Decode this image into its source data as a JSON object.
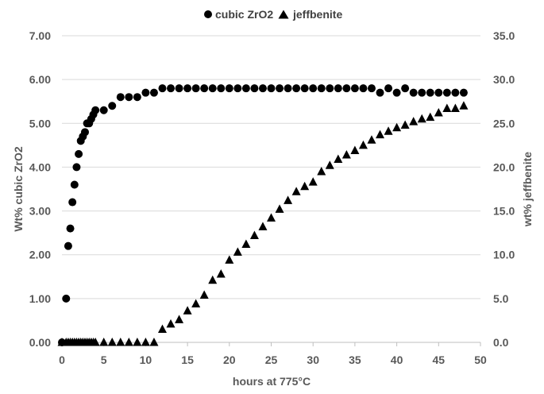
{
  "chart_data": {
    "type": "scatter",
    "xlabel": "hours at 775°C",
    "ylabel_left": "Wt% cubic ZrO2",
    "ylabel_right": "wt% jeffbenite",
    "xlim": [
      0,
      50
    ],
    "ylim_left": [
      0,
      7
    ],
    "ylim_right": [
      0,
      35
    ],
    "x_ticks": [
      "0",
      "5",
      "10",
      "15",
      "20",
      "25",
      "30",
      "35",
      "40",
      "45",
      "50"
    ],
    "y_left_ticks": [
      "0.00",
      "1.00",
      "2.00",
      "3.00",
      "4.00",
      "5.00",
      "6.00",
      "7.00"
    ],
    "y_right_ticks": [
      "0.0",
      "5.0",
      "10.0",
      "15.0",
      "20.0",
      "25.0",
      "30.0",
      "35.0"
    ],
    "grid": "horizontal",
    "legend_position": "top-center",
    "series": [
      {
        "name": "cubic ZrO2",
        "axis": "left",
        "marker": "circle",
        "color": "#000000",
        "x": [
          0,
          0.5,
          0.75,
          1,
          1.25,
          1.5,
          1.75,
          2,
          2.25,
          2.5,
          2.75,
          3,
          3.25,
          3.5,
          3.75,
          4,
          5,
          6,
          7,
          8,
          9,
          10,
          11,
          12,
          13,
          14,
          15,
          16,
          17,
          18,
          19,
          20,
          21,
          22,
          23,
          24,
          25,
          26,
          27,
          28,
          29,
          30,
          31,
          32,
          33,
          34,
          35,
          36,
          37,
          38,
          39,
          40,
          41,
          42,
          43,
          44,
          45,
          46,
          47,
          48
        ],
        "y": [
          0.0,
          1.0,
          2.2,
          2.6,
          3.2,
          3.6,
          4.0,
          4.3,
          4.6,
          4.7,
          4.8,
          5.0,
          5.0,
          5.1,
          5.2,
          5.3,
          5.3,
          5.4,
          5.6,
          5.6,
          5.6,
          5.7,
          5.7,
          5.8,
          5.8,
          5.8,
          5.8,
          5.8,
          5.8,
          5.8,
          5.8,
          5.8,
          5.8,
          5.8,
          5.8,
          5.8,
          5.8,
          5.8,
          5.8,
          5.8,
          5.8,
          5.8,
          5.8,
          5.8,
          5.8,
          5.8,
          5.8,
          5.8,
          5.8,
          5.7,
          5.8,
          5.7,
          5.8,
          5.7,
          5.7,
          5.7,
          5.7,
          5.7,
          5.7,
          5.7
        ]
      },
      {
        "name": "jeffbenite",
        "axis": "right",
        "marker": "triangle",
        "color": "#000000",
        "x": [
          0,
          0.5,
          0.75,
          1,
          1.25,
          1.5,
          1.75,
          2,
          2.25,
          2.5,
          2.75,
          3,
          3.25,
          3.5,
          3.75,
          4,
          5,
          6,
          7,
          8,
          9,
          10,
          11,
          12,
          13,
          14,
          15,
          16,
          17,
          18,
          19,
          20,
          21,
          22,
          23,
          24,
          25,
          26,
          27,
          28,
          29,
          30,
          31,
          32,
          33,
          34,
          35,
          36,
          37,
          38,
          39,
          40,
          41,
          42,
          43,
          44,
          45,
          46,
          47,
          48
        ],
        "y": [
          0,
          0,
          0,
          0,
          0,
          0,
          0,
          0,
          0,
          0,
          0,
          0,
          0,
          0,
          0,
          0,
          0,
          0,
          0,
          0,
          0,
          0,
          0,
          1.5,
          2.1,
          2.6,
          3.6,
          4.4,
          5.4,
          7.1,
          7.8,
          9.4,
          10.3,
          11.2,
          12.2,
          13.2,
          14.2,
          15.2,
          16.2,
          17.2,
          17.8,
          18.3,
          19.5,
          20.2,
          20.9,
          21.4,
          21.9,
          22.5,
          23.1,
          23.7,
          24.1,
          24.5,
          24.8,
          25.2,
          25.5,
          25.7,
          26.2,
          26.7,
          26.7,
          27.0
        ]
      }
    ]
  }
}
